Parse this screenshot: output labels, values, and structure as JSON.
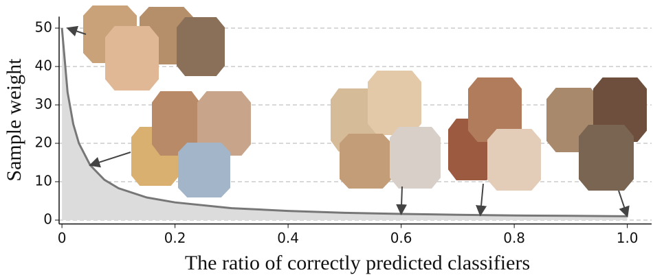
{
  "chart_data": {
    "type": "line",
    "x_label": "The ratio of correctly predicted classifiers",
    "y_label": "Sample weight",
    "x": [
      0,
      0.01,
      0.02,
      0.03,
      0.05,
      0.075,
      0.1,
      0.15,
      0.2,
      0.3,
      0.4,
      0.5,
      0.6,
      0.7,
      0.8,
      0.9,
      1.0
    ],
    "values": [
      50,
      33.3,
      25,
      20,
      14.3,
      10.5,
      8.3,
      5.9,
      4.6,
      3.1,
      2.4,
      1.9,
      1.6,
      1.4,
      1.2,
      1.1,
      1.0
    ],
    "color": "#777777",
    "area_color": "#dcdcdc",
    "xlim": [
      -0.005,
      1.043
    ],
    "ylim": [
      -1,
      53
    ],
    "xticks": [
      0,
      0.2,
      0.4,
      0.6,
      0.8,
      {
        "value": 1.0,
        "label": "1.0"
      }
    ],
    "yticks": [
      0,
      10,
      20,
      30,
      40,
      50
    ],
    "grid": true
  }
}
